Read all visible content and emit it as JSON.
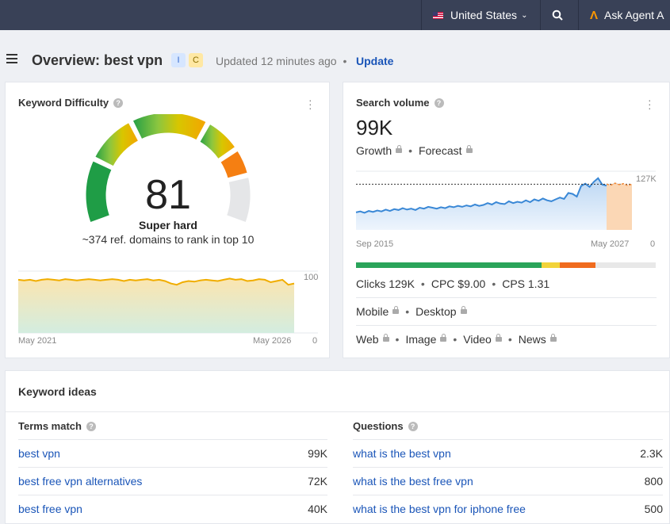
{
  "topbar": {
    "country": "United States",
    "agent": "Ask Agent A"
  },
  "header": {
    "title": "Overview: best vpn",
    "intents": [
      "I",
      "C"
    ],
    "updated": "Updated 12 minutes ago",
    "update_link": "Update"
  },
  "kd": {
    "title": "Keyword Difficulty",
    "value": "81",
    "label": "Super hard",
    "sub": "~374 ref. domains to rank in top 10",
    "gauge_level": 81,
    "chart_data": {
      "type": "area",
      "x_start": "May 2021",
      "x_end": "May 2026",
      "ylim": [
        0,
        100
      ],
      "y_top_label": "100",
      "y_bottom_label": "0",
      "values": [
        86,
        85,
        86,
        84,
        86,
        87,
        86,
        85,
        87,
        86,
        85,
        86,
        87,
        86,
        85,
        86,
        87,
        86,
        84,
        86,
        85,
        86,
        87,
        85,
        86,
        84,
        80,
        78,
        82,
        84,
        83,
        85,
        86,
        85,
        84,
        86,
        88,
        86,
        87,
        84,
        85,
        87,
        86,
        82,
        84,
        86,
        78,
        80
      ]
    }
  },
  "sv": {
    "title": "Search volume",
    "value": "99K",
    "growth": "Growth",
    "forecast": "Forecast",
    "chart_data": {
      "type": "area",
      "x_start": "Sep 2015",
      "x_end": "May 2027",
      "y_top_label": "127K",
      "y_bottom_label": "0",
      "ylim": [
        0,
        127
      ],
      "reference_line": 99,
      "values": [
        38,
        40,
        37,
        41,
        39,
        42,
        40,
        44,
        41,
        45,
        43,
        47,
        44,
        46,
        43,
        48,
        46,
        50,
        48,
        46,
        49,
        47,
        51,
        49,
        52,
        50,
        53,
        51,
        55,
        52,
        54,
        58,
        55,
        60,
        57,
        56,
        62,
        58,
        61,
        59,
        64,
        60,
        66,
        63,
        68,
        64,
        62,
        66,
        70,
        67,
        80,
        78,
        72,
        95,
        100,
        93,
        104,
        112,
        98,
        96
      ],
      "forecast_values": [
        99,
        97,
        101,
        98,
        100,
        96,
        99
      ]
    },
    "click_shares": [
      {
        "fraction": 0.62,
        "color": "#2aa45a"
      },
      {
        "fraction": 0.06,
        "color": "#f2d33a"
      },
      {
        "fraction": 0.12,
        "color": "#f06b1e"
      },
      {
        "fraction": 0.2,
        "color": "#e8e8e8"
      }
    ],
    "clicks": "Clicks 129K",
    "cpc": "CPC $9.00",
    "cps": "CPS 1.31",
    "mobile": "Mobile",
    "desktop": "Desktop",
    "sources": [
      "Web",
      "Image",
      "Video",
      "News"
    ]
  },
  "ideas": {
    "title": "Keyword ideas",
    "terms_header": "Terms match",
    "questions_header": "Questions",
    "terms": [
      {
        "kw": "best vpn",
        "vol": "99K"
      },
      {
        "kw": "best free vpn alternatives",
        "vol": "72K"
      },
      {
        "kw": "best free vpn",
        "vol": "40K"
      }
    ],
    "questions": [
      {
        "kw": "what is the best vpn",
        "vol": "2.3K"
      },
      {
        "kw": "what is the best free vpn",
        "vol": "800"
      },
      {
        "kw": "what is the best vpn for iphone free",
        "vol": "500"
      }
    ]
  }
}
